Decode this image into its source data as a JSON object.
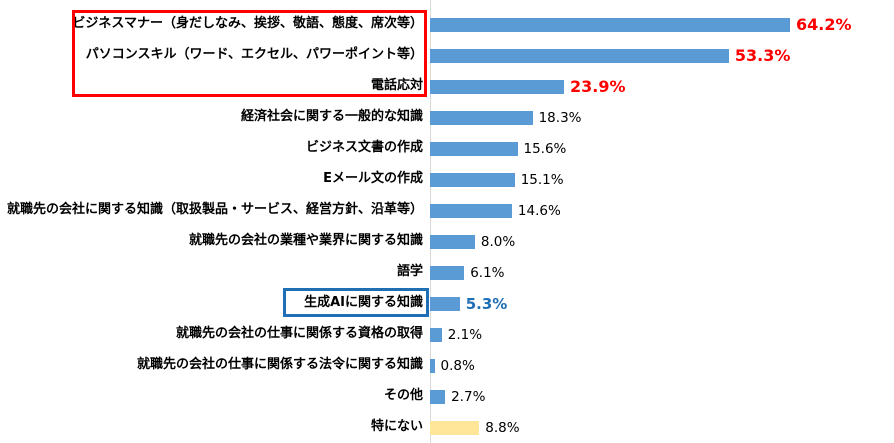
{
  "chart_data": {
    "type": "bar",
    "orientation": "horizontal",
    "title": "",
    "xlabel": "",
    "ylabel": "",
    "xlim": [
      0,
      70
    ],
    "grid": false,
    "legend": false,
    "data_labels": true,
    "categories": [
      "ビジネスマナー（身だしなみ、挨拶、敬語、態度、席次等）",
      "パソコンスキル（ワード、エクセル、パワーポイント等）",
      "電話応対",
      "経済社会に関する一般的な知識",
      "ビジネス文書の作成",
      "Eメール文の作成",
      "就職先の会社に関する知識（取扱製品・サービス、経営方針、沿革等）",
      "就職先の会社の業種や業界に関する知識",
      "語学",
      "生成AIに関する知識",
      "就職先の会社の仕事に関係する資格の取得",
      "就職先の会社の仕事に関係する法令に関する知識",
      "その他",
      "特にない"
    ],
    "values": [
      64.2,
      53.3,
      23.9,
      18.3,
      15.6,
      15.1,
      14.6,
      8.0,
      6.1,
      5.3,
      2.1,
      0.8,
      2.7,
      8.8
    ],
    "value_labels": [
      "64.2%",
      "53.3%",
      "23.9%",
      "18.3%",
      "15.6%",
      "15.1%",
      "14.6%",
      "8.0%",
      "6.1%",
      "5.3%",
      "2.1%",
      "0.8%",
      "2.7%",
      "8.8%"
    ]
  },
  "highlights": {
    "red_box_rows": [
      0,
      1,
      2
    ],
    "blue_box_rows": [
      9
    ],
    "red_value_rows": [
      0,
      1,
      2
    ],
    "blue_value_rows": [
      9
    ],
    "yellow_bar_rows": [
      13
    ]
  },
  "colors": {
    "bar_default": "#5b9bd5",
    "bar_yellow": "#ffe699",
    "value_default": "#000000",
    "value_red": "#ff0000",
    "value_blue": "#1f6fb5",
    "highlight_red_box": "#ff0000",
    "highlight_blue_box": "#1f6fb5",
    "axis_line": "#d9d9d9",
    "background": "#ffffff"
  }
}
